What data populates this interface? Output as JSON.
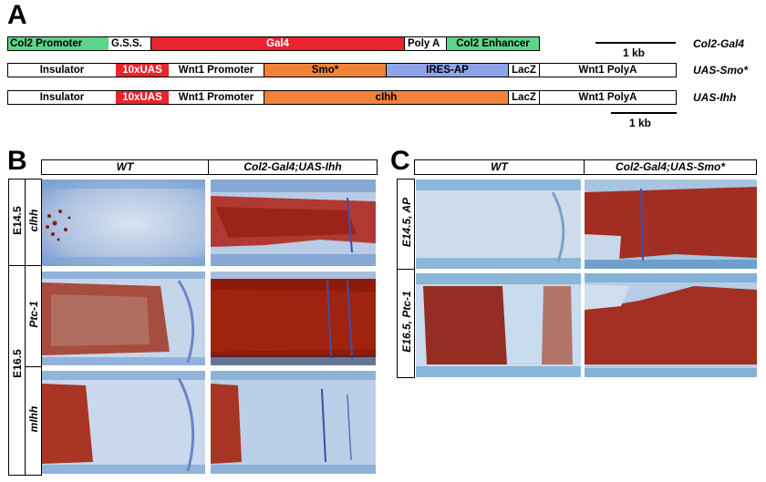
{
  "panel_a": {
    "letter": "A",
    "rows": [
      {
        "construct": "Col2-Gal4",
        "segments": [
          "Col2 Promoter",
          "G.S.S.",
          "Gal4",
          "Poly A",
          "Col2 Enhancer"
        ]
      },
      {
        "construct": "UAS-Smo*",
        "segments": [
          "Insulator",
          "10xUAS",
          "Wnt1 Promoter",
          "Smo*",
          "IRES-AP",
          "LacZ",
          "Wnt1 PolyA"
        ]
      },
      {
        "construct": "UAS-Ihh",
        "segments": [
          "Insulator",
          "10xUAS",
          "Wnt1 Promoter",
          "cIhh",
          "LacZ",
          "Wnt1 PolyA"
        ]
      }
    ],
    "scale_bar_1": "1 kb",
    "scale_bar_2": "1 kb",
    "colors": {
      "green": "#5cd68a",
      "red": "#e8242e",
      "orange": "#f0823a",
      "blue": "#8ea3e8"
    }
  },
  "panel_b": {
    "letter": "B",
    "col_headers": [
      "WT",
      "Col2-Gal4;UAS-Ihh"
    ],
    "stage_labels": [
      "E14.5",
      "E16.5"
    ],
    "probe_labels": [
      "cIhh",
      "Ptc-1",
      "mIhh"
    ]
  },
  "panel_c": {
    "letter": "C",
    "col_headers": [
      "WT",
      "Col2-Gal4;UAS-Smo*"
    ],
    "row_labels": [
      "E14.5, AP",
      "E16.5, Ptc-1"
    ]
  }
}
